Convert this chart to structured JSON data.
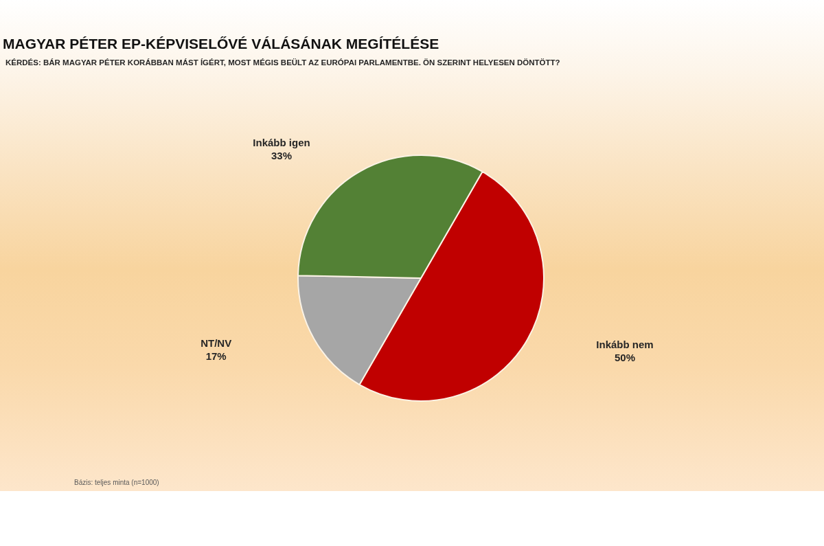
{
  "chart_data": {
    "type": "pie",
    "title": "MAGYAR PÉTER EP-KÉPVISELŐVÉ VÁLÁSÁNAK MEGÍTÉLÉSE",
    "subtitle": "KÉRDÉS: BÁR MAGYAR PÉTER KORÁBBAN MÁST ÍGÉRT, MOST MÉGIS BEÜLT AZ EURÓPAI PARLAMENTBE. ÖN SZERINT HELYESEN DÖNTÖTT?",
    "categories": [
      "Inkább nem",
      "NT/NV",
      "Inkább igen"
    ],
    "values": [
      50,
      17,
      33
    ],
    "value_labels": [
      "50%",
      "17%",
      "33%"
    ],
    "colors": [
      "#c00000",
      "#a6a6a6",
      "#538135"
    ],
    "annotations": [
      "Bázis: teljes minta (n=1000)"
    ]
  }
}
